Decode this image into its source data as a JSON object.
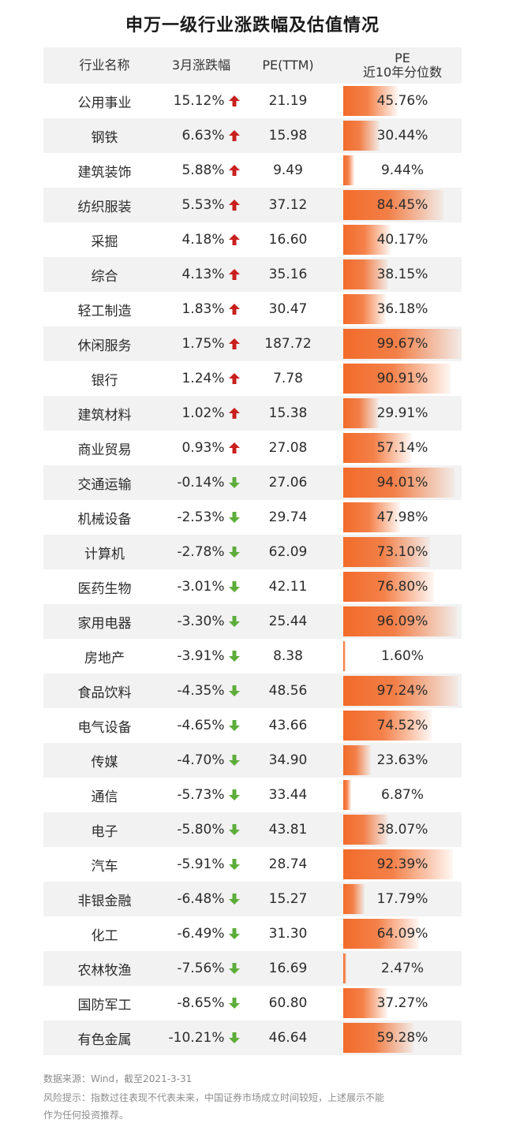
{
  "title": "申万一级行业涨跌幅及估值情况",
  "columns": {
    "industry": "行业名称",
    "change": "3月涨跌幅",
    "pe": "PE(TTM)",
    "pct_line1": "PE",
    "pct_line2": "近10年分位数"
  },
  "colors": {
    "up": "#c8201e",
    "down": "#5dad3a",
    "bar": "#f26b2a",
    "stripe": "#f2f2f2"
  },
  "rows": [
    {
      "industry": "公用事业",
      "change": "15.12%",
      "dir": "up",
      "pe": "21.19",
      "pct": "45.76%",
      "pct_value": 45.76
    },
    {
      "industry": "钢铁",
      "change": "6.63%",
      "dir": "up",
      "pe": "15.98",
      "pct": "30.44%",
      "pct_value": 30.44
    },
    {
      "industry": "建筑装饰",
      "change": "5.88%",
      "dir": "up",
      "pe": "9.49",
      "pct": "9.44%",
      "pct_value": 9.44
    },
    {
      "industry": "纺织服装",
      "change": "5.53%",
      "dir": "up",
      "pe": "37.12",
      "pct": "84.45%",
      "pct_value": 84.45
    },
    {
      "industry": "采掘",
      "change": "4.18%",
      "dir": "up",
      "pe": "16.60",
      "pct": "40.17%",
      "pct_value": 40.17
    },
    {
      "industry": "综合",
      "change": "4.13%",
      "dir": "up",
      "pe": "35.16",
      "pct": "38.15%",
      "pct_value": 38.15
    },
    {
      "industry": "轻工制造",
      "change": "1.83%",
      "dir": "up",
      "pe": "30.47",
      "pct": "36.18%",
      "pct_value": 36.18
    },
    {
      "industry": "休闲服务",
      "change": "1.75%",
      "dir": "up",
      "pe": "187.72",
      "pct": "99.67%",
      "pct_value": 99.67
    },
    {
      "industry": "银行",
      "change": "1.24%",
      "dir": "up",
      "pe": "7.78",
      "pct": "90.91%",
      "pct_value": 90.91
    },
    {
      "industry": "建筑材料",
      "change": "1.02%",
      "dir": "up",
      "pe": "15.38",
      "pct": "29.91%",
      "pct_value": 29.91
    },
    {
      "industry": "商业贸易",
      "change": "0.93%",
      "dir": "up",
      "pe": "27.08",
      "pct": "57.14%",
      "pct_value": 57.14
    },
    {
      "industry": "交通运输",
      "change": "-0.14%",
      "dir": "down",
      "pe": "27.06",
      "pct": "94.01%",
      "pct_value": 94.01
    },
    {
      "industry": "机械设备",
      "change": "-2.53%",
      "dir": "down",
      "pe": "29.74",
      "pct": "47.98%",
      "pct_value": 47.98
    },
    {
      "industry": "计算机",
      "change": "-2.78%",
      "dir": "down",
      "pe": "62.09",
      "pct": "73.10%",
      "pct_value": 73.1
    },
    {
      "industry": "医药生物",
      "change": "-3.01%",
      "dir": "down",
      "pe": "42.11",
      "pct": "76.80%",
      "pct_value": 76.8
    },
    {
      "industry": "家用电器",
      "change": "-3.30%",
      "dir": "down",
      "pe": "25.44",
      "pct": "96.09%",
      "pct_value": 96.09
    },
    {
      "industry": "房地产",
      "change": "-3.91%",
      "dir": "down",
      "pe": "8.38",
      "pct": "1.60%",
      "pct_value": 1.6
    },
    {
      "industry": "食品饮料",
      "change": "-4.35%",
      "dir": "down",
      "pe": "48.56",
      "pct": "97.24%",
      "pct_value": 97.24
    },
    {
      "industry": "电气设备",
      "change": "-4.65%",
      "dir": "down",
      "pe": "43.66",
      "pct": "74.52%",
      "pct_value": 74.52
    },
    {
      "industry": "传媒",
      "change": "-4.70%",
      "dir": "down",
      "pe": "34.90",
      "pct": "23.63%",
      "pct_value": 23.63
    },
    {
      "industry": "通信",
      "change": "-5.73%",
      "dir": "down",
      "pe": "33.44",
      "pct": "6.87%",
      "pct_value": 6.87
    },
    {
      "industry": "电子",
      "change": "-5.80%",
      "dir": "down",
      "pe": "43.81",
      "pct": "38.07%",
      "pct_value": 38.07
    },
    {
      "industry": "汽车",
      "change": "-5.91%",
      "dir": "down",
      "pe": "28.74",
      "pct": "92.39%",
      "pct_value": 92.39
    },
    {
      "industry": "非银金融",
      "change": "-6.48%",
      "dir": "down",
      "pe": "15.27",
      "pct": "17.79%",
      "pct_value": 17.79
    },
    {
      "industry": "化工",
      "change": "-6.49%",
      "dir": "down",
      "pe": "31.30",
      "pct": "64.09%",
      "pct_value": 64.09
    },
    {
      "industry": "农林牧渔",
      "change": "-7.56%",
      "dir": "down",
      "pe": "16.69",
      "pct": "2.47%",
      "pct_value": 2.47
    },
    {
      "industry": "国防军工",
      "change": "-8.65%",
      "dir": "down",
      "pe": "60.80",
      "pct": "37.27%",
      "pct_value": 37.27
    },
    {
      "industry": "有色金属",
      "change": "-10.21%",
      "dir": "down",
      "pe": "46.64",
      "pct": "59.28%",
      "pct_value": 59.28
    }
  ],
  "footer": {
    "source": "数据来源：Wind，截至2021-3-31",
    "risk_line1": "风险提示：指数过往表现不代表未来，中国证券市场成立时间较短，上述展示不能",
    "risk_line2": "作为任何投资推荐。"
  },
  "chart_data": {
    "type": "table",
    "title": "申万一级行业涨跌幅及估值情况",
    "columns": [
      "行业名称",
      "3月涨跌幅",
      "PE(TTM)",
      "PE 近10年分位数"
    ],
    "categories": [
      "公用事业",
      "钢铁",
      "建筑装饰",
      "纺织服装",
      "采掘",
      "综合",
      "轻工制造",
      "休闲服务",
      "银行",
      "建筑材料",
      "商业贸易",
      "交通运输",
      "机械设备",
      "计算机",
      "医药生物",
      "家用电器",
      "房地产",
      "食品饮料",
      "电气设备",
      "传媒",
      "通信",
      "电子",
      "汽车",
      "非银金融",
      "化工",
      "农林牧渔",
      "国防军工",
      "有色金属"
    ],
    "series": [
      {
        "name": "3月涨跌幅",
        "values": [
          15.12,
          6.63,
          5.88,
          5.53,
          4.18,
          4.13,
          1.83,
          1.75,
          1.24,
          1.02,
          0.93,
          -0.14,
          -2.53,
          -2.78,
          -3.01,
          -3.3,
          -3.91,
          -4.35,
          -4.65,
          -4.7,
          -5.73,
          -5.8,
          -5.91,
          -6.48,
          -6.49,
          -7.56,
          -8.65,
          -10.21
        ]
      },
      {
        "name": "PE(TTM)",
        "values": [
          21.19,
          15.98,
          9.49,
          37.12,
          16.6,
          35.16,
          30.47,
          187.72,
          7.78,
          15.38,
          27.08,
          27.06,
          29.74,
          62.09,
          42.11,
          25.44,
          8.38,
          48.56,
          43.66,
          34.9,
          33.44,
          43.81,
          28.74,
          15.27,
          31.3,
          16.69,
          60.8,
          46.64
        ]
      },
      {
        "name": "PE 近10年分位数",
        "values": [
          45.76,
          30.44,
          9.44,
          84.45,
          40.17,
          38.15,
          36.18,
          99.67,
          90.91,
          29.91,
          57.14,
          94.01,
          47.98,
          73.1,
          76.8,
          96.09,
          1.6,
          97.24,
          74.52,
          23.63,
          6.87,
          38.07,
          92.39,
          17.79,
          64.09,
          2.47,
          37.27,
          59.28
        ]
      }
    ]
  }
}
